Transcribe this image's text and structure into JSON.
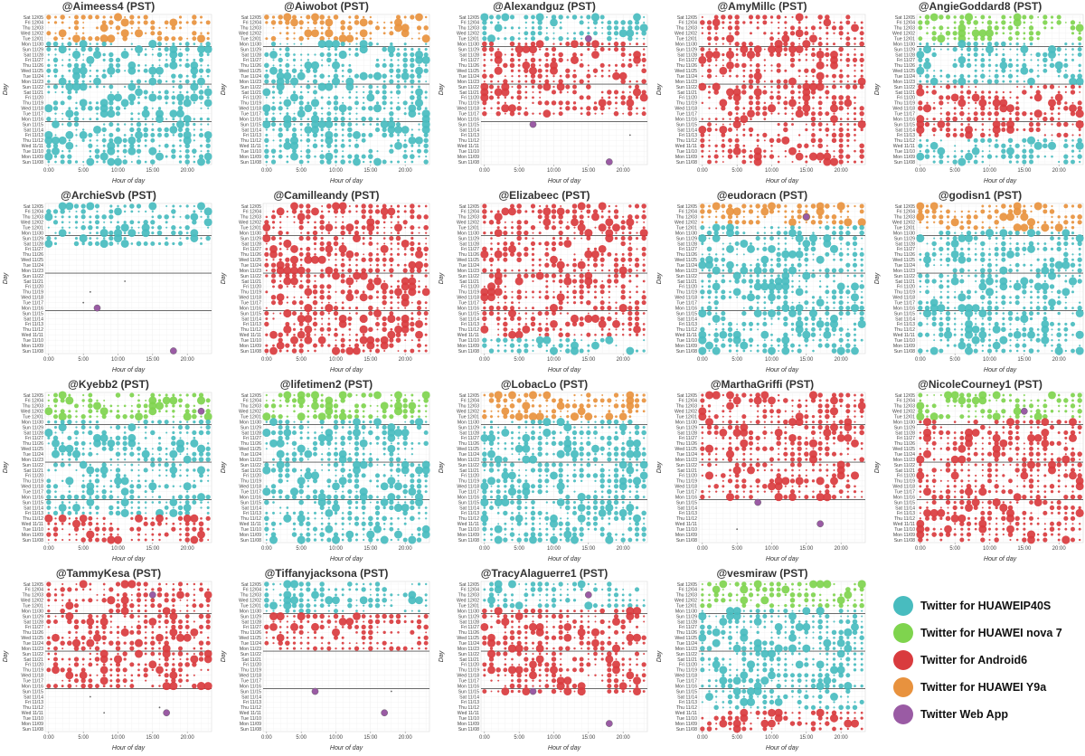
{
  "figure": {
    "title_suffix": "(PST)",
    "xlabel": "Hour of day",
    "ylabel": "Day"
  },
  "chart_data": {
    "type": "scatter",
    "xlabel": "Hour of day",
    "ylabel": "Day",
    "xlim": [
      -0.5,
      23.5
    ],
    "x_ticks": [
      0,
      5,
      10,
      15,
      20
    ],
    "x_tick_labels": [
      "0:00",
      "5:00",
      "10:00",
      "15:00",
      "20:00"
    ],
    "days": [
      "Sat 12/05",
      "Fri 12/04",
      "Thu 12/03",
      "Wed 12/02",
      "Tue 12/01",
      "Mon 11/30",
      "Sun 11/29",
      "Sat 11/28",
      "Fri 11/27",
      "Thu 11/26",
      "Wed 11/25",
      "Tue 11/24",
      "Mon 11/23",
      "Sun 11/22",
      "Sat 11/21",
      "Fri 11/20",
      "Thu 11/19",
      "Wed 11/18",
      "Tue 11/17",
      "Mon 11/16",
      "Sun 11/15",
      "Sat 11/14",
      "Fri 11/13",
      "Thu 11/12",
      "Wed 11/11",
      "Tue 11/10",
      "Mon 11/09",
      "Sun 11/08"
    ],
    "week_separator_days": [
      "Sun 11/29",
      "Sun 11/22",
      "Sun 11/15"
    ],
    "legend": [
      {
        "name": "Twitter for HUAWEIP40S",
        "color": "#48bcbf"
      },
      {
        "name": "Twitter for HUAWEI nova 7",
        "color": "#7fd44e"
      },
      {
        "name": "Twitter for Android6",
        "color": "#d93b3e"
      },
      {
        "name": "Twitter for HUAWEI Y9a",
        "color": "#e8923e"
      },
      {
        "name": "Twitter Web App",
        "color": "#9a5ba4"
      }
    ],
    "panels": [
      {
        "account": "@Aimeess4",
        "bands": [
          {
            "from": 0,
            "to": 4,
            "source": "Twitter for HUAWEI Y9a"
          },
          {
            "from": 5,
            "to": 27,
            "source": "Twitter for HUAWEIP40S"
          }
        ],
        "web": [],
        "empty": []
      },
      {
        "account": "@Aiwobot",
        "bands": [
          {
            "from": 0,
            "to": 4,
            "source": "Twitter for HUAWEI Y9a"
          },
          {
            "from": 5,
            "to": 27,
            "source": "Twitter for HUAWEIP40S"
          }
        ],
        "web": [],
        "empty": []
      },
      {
        "account": "@Alexandguz",
        "bands": [
          {
            "from": 0,
            "to": 4,
            "source": "Twitter for HUAWEIP40S"
          },
          {
            "from": 5,
            "to": 18,
            "source": "Twitter for Android6"
          }
        ],
        "web": [
          {
            "day": "Tue 12/01",
            "hour": 15
          },
          {
            "day": "Sun 11/15",
            "hour": 7
          },
          {
            "day": "Sun 11/08",
            "hour": 18
          }
        ],
        "empty": [
          {
            "from": 19,
            "to": 27
          }
        ]
      },
      {
        "account": "@AmyMillc",
        "bands": [
          {
            "from": 0,
            "to": 27,
            "source": "Twitter for Android6"
          }
        ],
        "web": [],
        "empty": []
      },
      {
        "account": "@AngieGoddard8",
        "bands": [
          {
            "from": 0,
            "to": 4,
            "source": "Twitter for HUAWEI nova 7"
          },
          {
            "from": 5,
            "to": 12,
            "source": "Twitter for HUAWEIP40S"
          },
          {
            "from": 13,
            "to": 22,
            "source": "Twitter for Android6"
          },
          {
            "from": 23,
            "to": 27,
            "source": "Twitter for HUAWEIP40S"
          }
        ],
        "web": [],
        "empty": []
      },
      {
        "account": "@ArchieSvb",
        "bands": [
          {
            "from": 0,
            "to": 7,
            "source": "Twitter for HUAWEIP40S"
          }
        ],
        "web": [
          {
            "day": "Mon 11/16",
            "hour": 7
          },
          {
            "day": "Sun 11/08",
            "hour": 18
          }
        ],
        "empty": [
          {
            "from": 8,
            "to": 27
          }
        ]
      },
      {
        "account": "@Camilleandy",
        "bands": [
          {
            "from": 0,
            "to": 27,
            "source": "Twitter for Android6"
          }
        ],
        "web": [],
        "empty": []
      },
      {
        "account": "@Elizabeec",
        "bands": [
          {
            "from": 0,
            "to": 24,
            "source": "Twitter for Android6"
          },
          {
            "from": 25,
            "to": 27,
            "source": "Twitter for HUAWEIP40S"
          }
        ],
        "web": [],
        "empty": []
      },
      {
        "account": "@eudoracn",
        "bands": [
          {
            "from": 0,
            "to": 3,
            "source": "Twitter for HUAWEI Y9a"
          },
          {
            "from": 4,
            "to": 27,
            "source": "Twitter for HUAWEIP40S"
          }
        ],
        "web": [
          {
            "day": "Thu 12/03",
            "hour": 15
          }
        ],
        "empty": []
      },
      {
        "account": "@godisn1",
        "bands": [
          {
            "from": 0,
            "to": 4,
            "source": "Twitter for HUAWEI Y9a"
          },
          {
            "from": 5,
            "to": 27,
            "source": "Twitter for HUAWEIP40S"
          }
        ],
        "web": [],
        "empty": []
      },
      {
        "account": "@Kyebb2",
        "bands": [
          {
            "from": 0,
            "to": 4,
            "source": "Twitter for HUAWEI nova 7"
          },
          {
            "from": 5,
            "to": 22,
            "source": "Twitter for HUAWEIP40S"
          },
          {
            "from": 23,
            "to": 27,
            "source": "Twitter for Android6"
          }
        ],
        "web": [
          {
            "day": "Wed 12/02",
            "hour": 22
          }
        ],
        "empty": []
      },
      {
        "account": "@lifetimen2",
        "bands": [
          {
            "from": 0,
            "to": 4,
            "source": "Twitter for HUAWEI nova 7"
          },
          {
            "from": 5,
            "to": 27,
            "source": "Twitter for HUAWEIP40S"
          }
        ],
        "web": [],
        "empty": []
      },
      {
        "account": "@LobacLo",
        "bands": [
          {
            "from": 0,
            "to": 4,
            "source": "Twitter for HUAWEI Y9a"
          },
          {
            "from": 5,
            "to": 27,
            "source": "Twitter for HUAWEIP40S"
          }
        ],
        "web": [],
        "empty": []
      },
      {
        "account": "@MarthaGriffi",
        "bands": [
          {
            "from": 0,
            "to": 19,
            "source": "Twitter for Android6"
          }
        ],
        "web": [
          {
            "day": "Sun 11/15",
            "hour": 8
          },
          {
            "day": "Wed 11/11",
            "hour": 17
          }
        ],
        "empty": [
          {
            "from": 20,
            "to": 27
          }
        ]
      },
      {
        "account": "@NicoleCourney1",
        "bands": [
          {
            "from": 0,
            "to": 4,
            "source": "Twitter for HUAWEI nova 7"
          },
          {
            "from": 5,
            "to": 17,
            "source": "Twitter for Android6"
          },
          {
            "from": 18,
            "to": 23,
            "source": "Twitter for Android6"
          },
          {
            "from": 24,
            "to": 27,
            "source": "Twitter for Android6"
          }
        ],
        "web": [
          {
            "day": "Wed 12/02",
            "hour": 15
          }
        ],
        "empty": []
      },
      {
        "account": "@TammyKesa",
        "bands": [
          {
            "from": 0,
            "to": 19,
            "source": "Twitter for Android6"
          }
        ],
        "web": [
          {
            "day": "Thu 12/03",
            "hour": 15
          },
          {
            "day": "Wed 11/11",
            "hour": 17
          }
        ],
        "empty": [
          {
            "from": 20,
            "to": 27
          }
        ]
      },
      {
        "account": "@Tiffanyjacksona",
        "bands": [
          {
            "from": 0,
            "to": 5,
            "source": "Twitter for HUAWEIP40S"
          },
          {
            "from": 6,
            "to": 12,
            "source": "Twitter for Android6"
          }
        ],
        "web": [
          {
            "day": "Sun 11/15",
            "hour": 7
          },
          {
            "day": "Wed 11/11",
            "hour": 17
          }
        ],
        "empty": [
          {
            "from": 13,
            "to": 27
          }
        ]
      },
      {
        "account": "@TracyAlaguerre1",
        "bands": [
          {
            "from": 0,
            "to": 4,
            "source": "Twitter for HUAWEIP40S"
          },
          {
            "from": 5,
            "to": 20,
            "source": "Twitter for Android6"
          }
        ],
        "web": [
          {
            "day": "Thu 12/03",
            "hour": 15
          },
          {
            "day": "Sun 11/15",
            "hour": 7
          },
          {
            "day": "Mon 11/09",
            "hour": 18
          }
        ],
        "empty": [
          {
            "from": 21,
            "to": 27
          }
        ]
      },
      {
        "account": "@vesmiraw",
        "bands": [
          {
            "from": 0,
            "to": 4,
            "source": "Twitter for HUAWEI nova 7"
          },
          {
            "from": 5,
            "to": 23,
            "source": "Twitter for HUAWEIP40S"
          },
          {
            "from": 24,
            "to": 27,
            "source": "Twitter for Android6"
          }
        ],
        "web": [],
        "empty": []
      }
    ]
  }
}
